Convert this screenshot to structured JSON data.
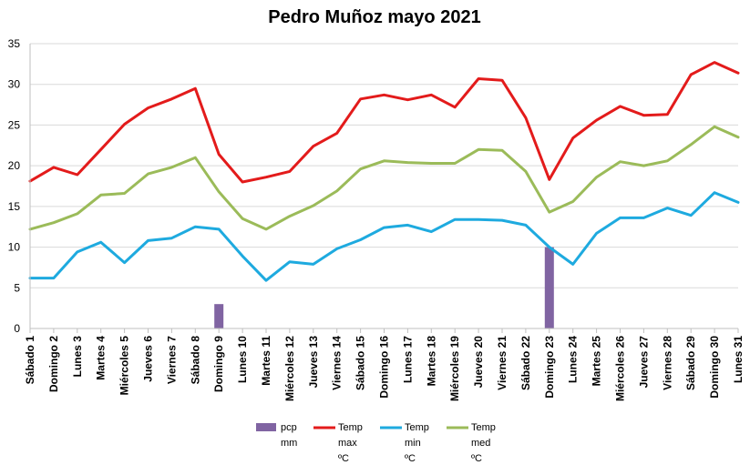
{
  "chart_data": {
    "type": "bar+line",
    "title": "Pedro Muñoz mayo 2021",
    "ylim": [
      0,
      35
    ],
    "yticks": [
      0,
      5,
      10,
      15,
      20,
      25,
      30,
      35
    ],
    "grid": "horizontal",
    "legend_position": "bottom",
    "categories": [
      "Sábado 1",
      "Domingo 2",
      "Lunes 3",
      "Martes 4",
      "Miércoles 5",
      "Jueves 6",
      "Viernes 7",
      "Sábado 8",
      "Domingo 9",
      "Lunes 10",
      "Martes 11",
      "Miércoles 12",
      "Jueves 13",
      "Viernes 14",
      "Sábado 15",
      "Domingo 16",
      "Lunes 17",
      "Martes 18",
      "Miércoles 19",
      "Jueves 20",
      "Viernes 21",
      "Sábado 22",
      "Domingo 23",
      "Lunes 24",
      "Martes 25",
      "Miércoles 26",
      "Jueves 27",
      "Viernes 28",
      "Sábado 29",
      "Domingo 30",
      "Lunes 31"
    ],
    "series": [
      {
        "name": "pcp mm",
        "legend_lines": [
          "pcp",
          "mm"
        ],
        "kind": "bar",
        "color": "#8064a2",
        "values": [
          0,
          0,
          0,
          0,
          0,
          0,
          0,
          0,
          3,
          0,
          0,
          0,
          0,
          0,
          0,
          0,
          0,
          0,
          0,
          0,
          0,
          0,
          10,
          0,
          0,
          0,
          0,
          0,
          0,
          0,
          0
        ]
      },
      {
        "name": "Temp max ºC",
        "legend_lines": [
          "Temp",
          "max",
          "ºC"
        ],
        "kind": "line",
        "color": "#e31b1b",
        "values": [
          18.1,
          19.8,
          18.9,
          22.0,
          25.1,
          27.1,
          28.2,
          29.5,
          21.4,
          18.0,
          18.6,
          19.3,
          22.4,
          24.0,
          28.2,
          28.7,
          28.1,
          28.7,
          27.2,
          30.7,
          30.5,
          25.9,
          18.3,
          23.4,
          25.6,
          27.3,
          26.2,
          26.3,
          31.2,
          32.7,
          31.4
        ]
      },
      {
        "name": "Temp min ºC",
        "legend_lines": [
          "Temp",
          "min",
          "ºC"
        ],
        "kind": "line",
        "color": "#1eaadf",
        "values": [
          6.2,
          6.2,
          9.4,
          10.6,
          8.1,
          10.8,
          11.1,
          12.5,
          12.2,
          8.9,
          5.9,
          8.2,
          7.9,
          9.8,
          10.9,
          12.4,
          12.7,
          11.9,
          13.4,
          13.4,
          13.3,
          12.7,
          10.0,
          7.9,
          11.7,
          13.6,
          13.6,
          14.8,
          13.9,
          16.7,
          15.5
        ]
      },
      {
        "name": "Temp med ºC",
        "legend_lines": [
          "Temp",
          "med",
          "ºC"
        ],
        "kind": "line",
        "color": "#9bbb59",
        "values": [
          12.2,
          13.0,
          14.1,
          16.4,
          16.6,
          19.0,
          19.8,
          21.0,
          16.8,
          13.5,
          12.2,
          13.8,
          15.1,
          16.9,
          19.6,
          20.6,
          20.4,
          20.3,
          20.3,
          22.0,
          21.9,
          19.3,
          14.3,
          15.6,
          18.6,
          20.5,
          20.0,
          20.6,
          22.6,
          24.8,
          23.5
        ]
      }
    ]
  }
}
